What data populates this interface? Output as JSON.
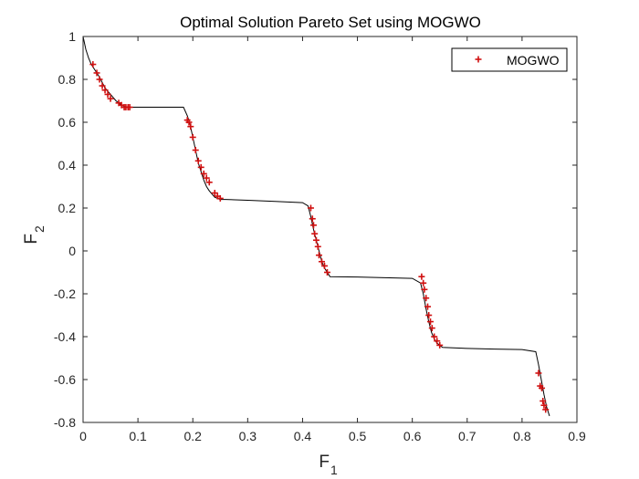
{
  "chart_data": {
    "type": "scatter",
    "title": "Optimal Solution Pareto Set using MOGWO",
    "xlabel": {
      "main": "F",
      "sub": "1"
    },
    "ylabel": {
      "main": "F",
      "sub": "2"
    },
    "xlim": [
      0,
      0.9
    ],
    "ylim": [
      -0.8,
      1
    ],
    "xticks": [
      0,
      0.1,
      0.2,
      0.3,
      0.4,
      0.5,
      0.6,
      0.7,
      0.8,
      0.9
    ],
    "xtick_labels": [
      "0",
      "0.1",
      "0.2",
      "0.3",
      "0.4",
      "0.5",
      "0.6",
      "0.7",
      "0.8",
      "0.9"
    ],
    "yticks": [
      -0.8,
      -0.6,
      -0.4,
      -0.2,
      0,
      0.2,
      0.4,
      0.6,
      0.8,
      1
    ],
    "ytick_labels": [
      "-0.8",
      "-0.6",
      "-0.4",
      "-0.2",
      "0",
      "0.2",
      "0.4",
      "0.6",
      "0.8",
      "1"
    ],
    "grid": false,
    "legend": {
      "position": "top-right",
      "entries": [
        "MOGWO"
      ]
    },
    "series": [
      {
        "name": "",
        "kind": "line",
        "color": "#000000",
        "x": [
          0,
          0.005,
          0.01,
          0.015,
          0.02,
          0.03,
          0.04,
          0.05,
          0.06,
          0.07,
          0.08,
          0.1,
          0.14,
          0.183,
          0.19,
          0.195,
          0.2,
          0.205,
          0.21,
          0.215,
          0.22,
          0.225,
          0.23,
          0.235,
          0.24,
          0.245,
          0.25,
          0.26,
          0.3,
          0.35,
          0.4,
          0.41,
          0.415,
          0.42,
          0.425,
          0.43,
          0.435,
          0.44,
          0.445,
          0.45,
          0.5,
          0.55,
          0.6,
          0.615,
          0.62,
          0.625,
          0.63,
          0.635,
          0.64,
          0.645,
          0.65,
          0.655,
          0.7,
          0.75,
          0.8,
          0.825,
          0.83,
          0.835,
          0.84,
          0.845,
          0.85
        ],
        "y": [
          1,
          0.94,
          0.9,
          0.87,
          0.85,
          0.81,
          0.76,
          0.73,
          0.7,
          0.68,
          0.67,
          0.67,
          0.67,
          0.67,
          0.63,
          0.59,
          0.53,
          0.47,
          0.41,
          0.37,
          0.33,
          0.3,
          0.28,
          0.265,
          0.25,
          0.245,
          0.24,
          0.24,
          0.236,
          0.231,
          0.225,
          0.21,
          0.16,
          0.1,
          0.05,
          0.0,
          -0.05,
          -0.08,
          -0.1,
          -0.12,
          -0.122,
          -0.125,
          -0.128,
          -0.15,
          -0.2,
          -0.27,
          -0.33,
          -0.38,
          -0.41,
          -0.43,
          -0.44,
          -0.45,
          -0.455,
          -0.458,
          -0.46,
          -0.47,
          -0.53,
          -0.6,
          -0.67,
          -0.73,
          -0.77
        ]
      },
      {
        "name": "MOGWO",
        "kind": "scatter",
        "marker": "+",
        "color": "#d01010",
        "x": [
          0.018,
          0.025,
          0.03,
          0.035,
          0.04,
          0.045,
          0.05,
          0.065,
          0.07,
          0.075,
          0.078,
          0.082,
          0.085,
          0.19,
          0.193,
          0.196,
          0.2,
          0.205,
          0.21,
          0.215,
          0.22,
          0.225,
          0.23,
          0.24,
          0.245,
          0.25,
          0.415,
          0.418,
          0.42,
          0.422,
          0.425,
          0.428,
          0.43,
          0.435,
          0.44,
          0.445,
          0.617,
          0.62,
          0.622,
          0.625,
          0.628,
          0.63,
          0.633,
          0.636,
          0.64,
          0.645,
          0.65,
          0.83,
          0.833,
          0.836,
          0.838,
          0.84,
          0.843
        ],
        "y": [
          0.87,
          0.83,
          0.8,
          0.77,
          0.75,
          0.73,
          0.71,
          0.69,
          0.68,
          0.67,
          0.67,
          0.67,
          0.67,
          0.61,
          0.6,
          0.58,
          0.53,
          0.47,
          0.42,
          0.39,
          0.36,
          0.34,
          0.32,
          0.27,
          0.255,
          0.245,
          0.2,
          0.15,
          0.12,
          0.08,
          0.05,
          0.02,
          -0.02,
          -0.05,
          -0.07,
          -0.1,
          -0.12,
          -0.15,
          -0.18,
          -0.22,
          -0.26,
          -0.3,
          -0.33,
          -0.36,
          -0.4,
          -0.42,
          -0.44,
          -0.57,
          -0.63,
          -0.64,
          -0.7,
          -0.72,
          -0.74
        ]
      }
    ]
  }
}
